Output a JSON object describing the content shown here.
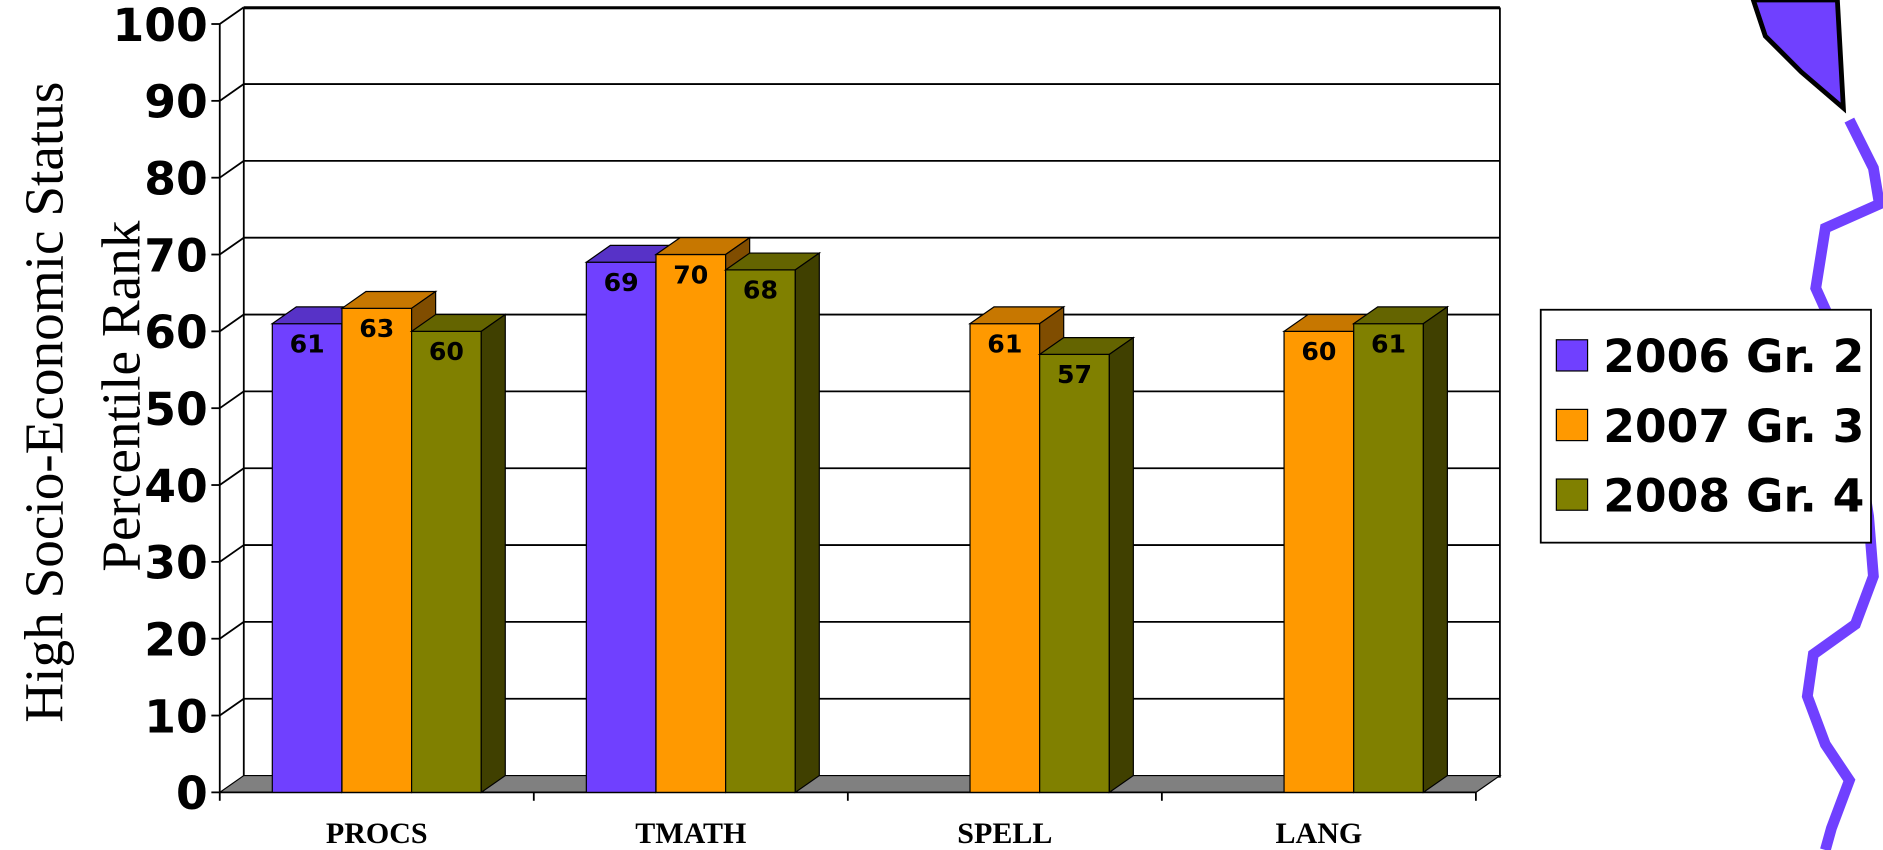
{
  "chart_data": {
    "type": "bar3d",
    "y_title_lines": [
      "High Socio-Economic Status",
      "Percentile Rank"
    ],
    "categories": [
      "PROCS",
      "TMATH",
      "SPELL",
      "LANG"
    ],
    "series": [
      {
        "name": "2006 Gr. 2",
        "color": "#7040ff",
        "values": [
          61,
          69,
          null,
          null
        ]
      },
      {
        "name": "2007 Gr. 3",
        "color": "#ff9900",
        "values": [
          63,
          70,
          61,
          60
        ]
      },
      {
        "name": "2008 Gr. 4",
        "color": "#808000",
        "values": [
          60,
          68,
          57,
          61
        ]
      }
    ],
    "ylim": [
      0,
      100
    ],
    "yticks": [
      0,
      10,
      20,
      30,
      40,
      50,
      60,
      70,
      80,
      90,
      100
    ],
    "grid": true,
    "legend": "right"
  }
}
